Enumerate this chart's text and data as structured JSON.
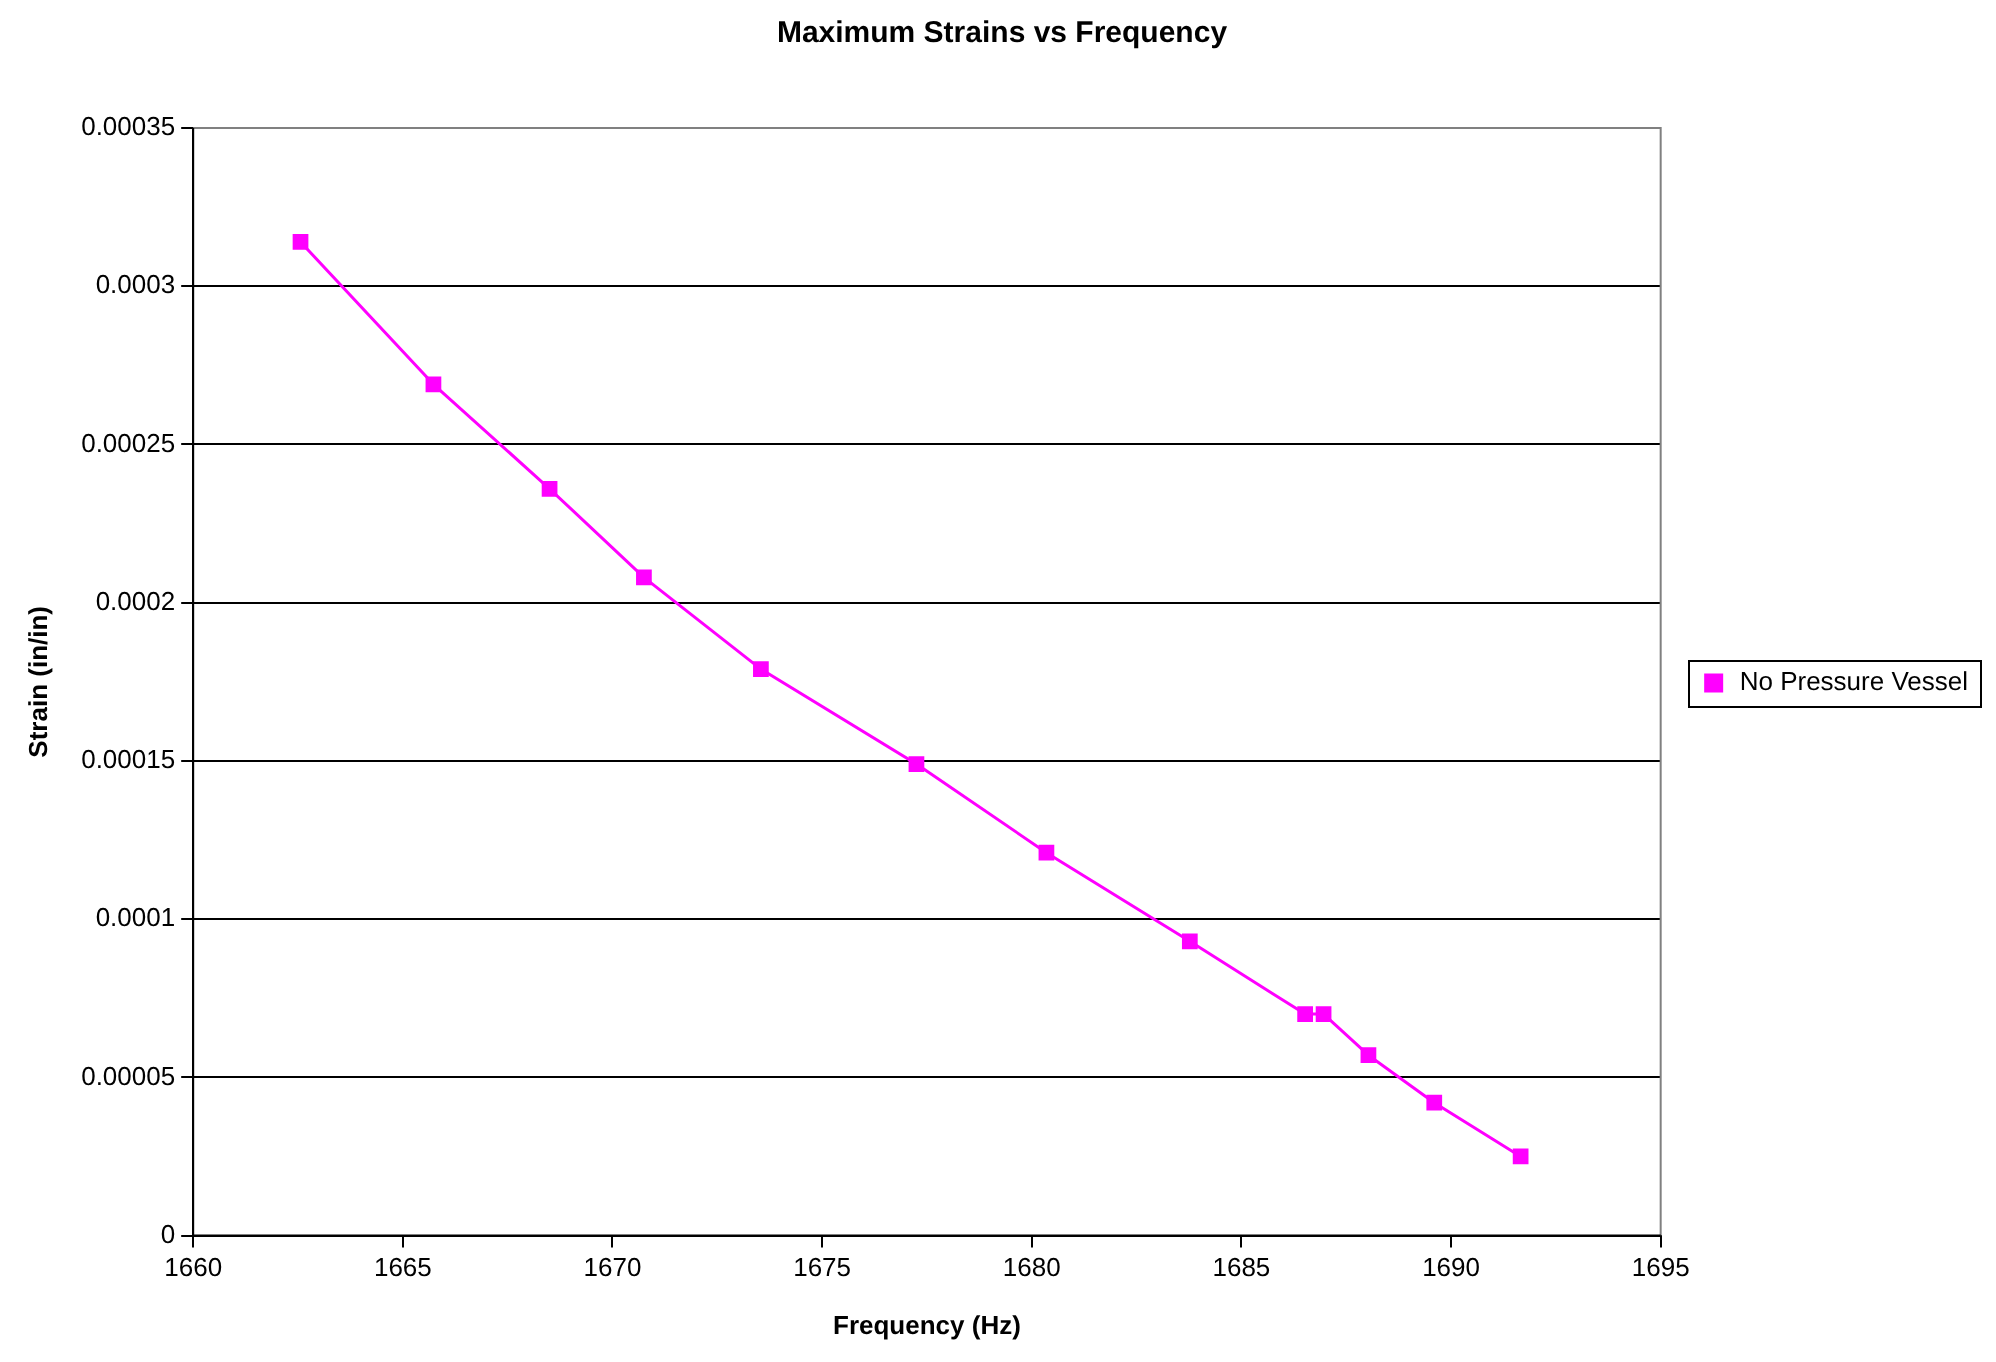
{
  "chart_data": {
    "type": "line",
    "title": "Maximum Strains vs Frequency",
    "xlabel": "Frequency (Hz)",
    "ylabel": "Strain (in/in)",
    "x": [
      1662.56,
      1665.73,
      1668.5,
      1670.75,
      1673.54,
      1677.25,
      1680.35,
      1683.77,
      1686.52,
      1686.96,
      1688.03,
      1689.6,
      1691.66
    ],
    "series": [
      {
        "name": "No Pressure Vessel",
        "color": "#ff00ff",
        "values": [
          0.000314,
          0.000269,
          0.000236,
          0.000208,
          0.000179,
          0.000149,
          0.000121,
          9.3e-05,
          7e-05,
          7e-05,
          5.7e-05,
          4.2e-05,
          2.5e-05
        ]
      }
    ],
    "xlim": [
      1660,
      1695
    ],
    "xticks": [
      1660,
      1665,
      1670,
      1675,
      1680,
      1685,
      1690,
      1695
    ],
    "ylim": [
      0,
      0.00035
    ],
    "yticks": [
      0,
      {
        "value": 5e-05,
        "label": "0.00005"
      },
      0.0001,
      0.00015,
      0.0002,
      0.00025,
      0.0003,
      0.00035
    ],
    "grid": "y",
    "legend": "right",
    "marker": "square",
    "line_style": "solid"
  }
}
